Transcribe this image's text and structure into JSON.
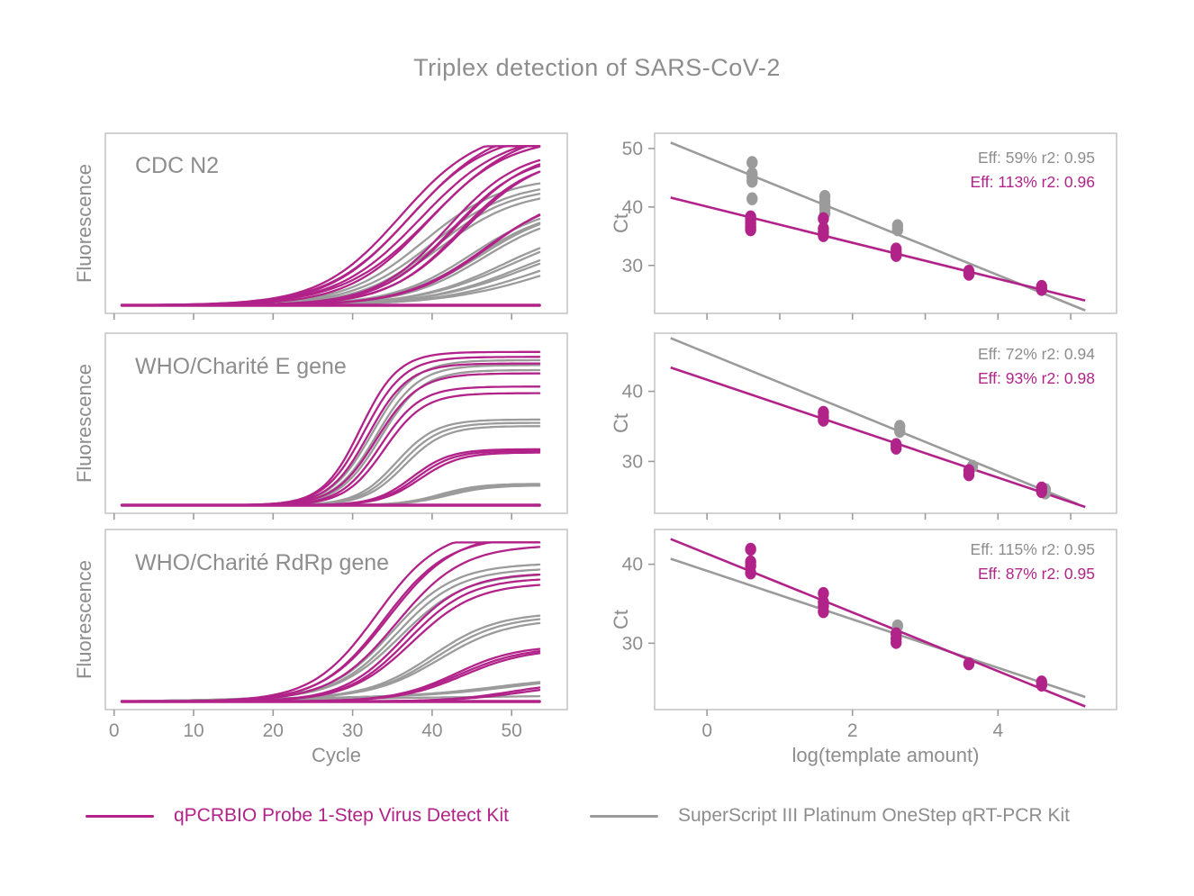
{
  "title": "Triplex detection of SARS-CoV-2",
  "colors": {
    "magenta": "#b12389",
    "gray": "#9b9b9b",
    "text": "#8d8d8d",
    "panel_border": "#c6c6c6",
    "tick": "#9b9b9b"
  },
  "legend": [
    {
      "label": "qPCRBIO Probe 1-Step Virus Detect Kit",
      "color": "magenta"
    },
    {
      "label": "SuperScript III Platinum OneStep qRT-PCR Kit",
      "color": "gray"
    }
  ],
  "chart_data": [
    {
      "type": "line",
      "panel_label": "CDC N2",
      "xlabel": "Cycle",
      "ylabel": "Fluorescence",
      "xlim": [
        -1.1,
        57
      ],
      "xticks": [
        0,
        10,
        20,
        30,
        40,
        50
      ],
      "curves": [
        {
          "series": "gray",
          "mid": 39,
          "plateau": 0.78,
          "rate": 0.2
        },
        {
          "series": "gray",
          "mid": 40,
          "plateau": 0.75,
          "rate": 0.2
        },
        {
          "series": "gray",
          "mid": 40.5,
          "plateau": 0.72,
          "rate": 0.21
        },
        {
          "series": "gray",
          "mid": 41,
          "plateau": 0.7,
          "rate": 0.2
        },
        {
          "series": "gray",
          "mid": 45,
          "plateau": 0.62,
          "rate": 0.2
        },
        {
          "series": "gray",
          "mid": 45.5,
          "plateau": 0.6,
          "rate": 0.2
        },
        {
          "series": "gray",
          "mid": 46,
          "plateau": 0.6,
          "rate": 0.2
        },
        {
          "series": "gray",
          "mid": 46.5,
          "plateau": 0.58,
          "rate": 0.2
        },
        {
          "series": "gray",
          "mid": 49,
          "plateau": 0.5,
          "rate": 0.18
        },
        {
          "series": "gray",
          "mid": 50,
          "plateau": 0.5,
          "rate": 0.17
        },
        {
          "series": "gray",
          "mid": 51,
          "plateau": 0.45,
          "rate": 0.17
        },
        {
          "series": "gray",
          "mid": 52,
          "plateau": 0.45,
          "rate": 0.16
        },
        {
          "series": "gray",
          "mid": 53,
          "plateau": 0.4,
          "rate": 0.16
        },
        {
          "series": "gray",
          "mid": 55,
          "plateau": 0.4,
          "rate": 0.15
        },
        {
          "series": "gray",
          "mid": 30,
          "plateau": 0,
          "rate": 0.2
        },
        {
          "series": "magenta",
          "mid": 36,
          "plateau": 1.08,
          "rate": 0.2
        },
        {
          "series": "magenta",
          "mid": 37,
          "plateau": 1.05,
          "rate": 0.2
        },
        {
          "series": "magenta",
          "mid": 37.5,
          "plateau": 1.1,
          "rate": 0.19
        },
        {
          "series": "magenta",
          "mid": 38.5,
          "plateau": 1.05,
          "rate": 0.19
        },
        {
          "series": "magenta",
          "mid": 39.5,
          "plateau": 1.02,
          "rate": 0.2
        },
        {
          "series": "magenta",
          "mid": 40,
          "plateau": 1.08,
          "rate": 0.18
        },
        {
          "series": "magenta",
          "mid": 42,
          "plateau": 0.95,
          "rate": 0.22
        },
        {
          "series": "magenta",
          "mid": 42.5,
          "plateau": 0.92,
          "rate": 0.22
        },
        {
          "series": "magenta",
          "mid": 43,
          "plateau": 0.95,
          "rate": 0.21
        },
        {
          "series": "magenta",
          "mid": 43.5,
          "plateau": 0.9,
          "rate": 0.22
        },
        {
          "series": "magenta",
          "mid": 44,
          "plateau": 0.92,
          "rate": 0.21
        },
        {
          "series": "magenta",
          "mid": 46.5,
          "plateau": 0.68,
          "rate": 0.2
        },
        {
          "series": "magenta",
          "mid": 47,
          "plateau": 0.7,
          "rate": 0.2
        },
        {
          "series": "magenta",
          "mid": 30,
          "plateau": 0,
          "rate": 0.2,
          "w": 3.5
        },
        {
          "series": "magenta",
          "mid": 32,
          "plateau": 0,
          "rate": 0.2
        }
      ]
    },
    {
      "type": "line",
      "panel_label": "WHO/Charité E gene",
      "xlabel": "Cycle",
      "ylabel": "Fluorescence",
      "xlim": [
        -1.1,
        57
      ],
      "xticks": [
        0,
        10,
        20,
        30,
        40,
        50
      ],
      "curves": [
        {
          "series": "gray",
          "mid": 32.5,
          "plateau": 0.88,
          "rate": 0.38
        },
        {
          "series": "gray",
          "mid": 33,
          "plateau": 0.85,
          "rate": 0.38
        },
        {
          "series": "gray",
          "mid": 33.5,
          "plateau": 0.82,
          "rate": 0.38
        },
        {
          "series": "gray",
          "mid": 35.5,
          "plateau": 0.52,
          "rate": 0.4
        },
        {
          "series": "gray",
          "mid": 36,
          "plateau": 0.5,
          "rate": 0.4
        },
        {
          "series": "gray",
          "mid": 36.5,
          "plateau": 0.48,
          "rate": 0.4
        },
        {
          "series": "gray",
          "mid": 41,
          "plateau": 0.13,
          "rate": 0.4
        },
        {
          "series": "gray",
          "mid": 41.5,
          "plateau": 0.12,
          "rate": 0.4
        },
        {
          "series": "gray",
          "mid": 42,
          "plateau": 0.12,
          "rate": 0.38
        },
        {
          "series": "gray",
          "mid": 30,
          "plateau": 0,
          "rate": 0.2
        },
        {
          "series": "magenta",
          "mid": 31,
          "plateau": 0.93,
          "rate": 0.42
        },
        {
          "series": "magenta",
          "mid": 31.5,
          "plateau": 0.9,
          "rate": 0.4
        },
        {
          "series": "magenta",
          "mid": 32,
          "plateau": 0.86,
          "rate": 0.4
        },
        {
          "series": "magenta",
          "mid": 33,
          "plateau": 0.8,
          "rate": 0.38
        },
        {
          "series": "magenta",
          "mid": 33.5,
          "plateau": 0.72,
          "rate": 0.4
        },
        {
          "series": "magenta",
          "mid": 34,
          "plateau": 0.68,
          "rate": 0.4
        },
        {
          "series": "magenta",
          "mid": 37.5,
          "plateau": 0.34,
          "rate": 0.42
        },
        {
          "series": "magenta",
          "mid": 38,
          "plateau": 0.33,
          "rate": 0.42
        },
        {
          "series": "magenta",
          "mid": 38.5,
          "plateau": 0.32,
          "rate": 0.4
        },
        {
          "series": "magenta",
          "mid": 30,
          "plateau": 0,
          "rate": 0.2,
          "w": 3.5
        },
        {
          "series": "magenta",
          "mid": 33,
          "plateau": 0,
          "rate": 0.2
        },
        {
          "series": "magenta",
          "mid": 36,
          "plateau": 0,
          "rate": 0.2
        }
      ]
    },
    {
      "type": "line",
      "panel_label": "WHO/Charité RdRp gene",
      "xlabel": "Cycle",
      "ylabel": "Fluorescence",
      "xlim": [
        -1.1,
        57
      ],
      "xticks": [
        0,
        10,
        20,
        30,
        40,
        50
      ],
      "curves": [
        {
          "series": "gray",
          "mid": 35,
          "plateau": 0.8,
          "rate": 0.26,
          "drift": 0.035
        },
        {
          "series": "gray",
          "mid": 35.5,
          "plateau": 0.77,
          "rate": 0.26,
          "drift": 0.035
        },
        {
          "series": "gray",
          "mid": 36,
          "plateau": 0.74,
          "rate": 0.25,
          "drift": 0.035
        },
        {
          "series": "gray",
          "mid": 40,
          "plateau": 0.5,
          "rate": 0.25,
          "drift": 0.035
        },
        {
          "series": "gray",
          "mid": 40.5,
          "plateau": 0.48,
          "rate": 0.25,
          "drift": 0.035
        },
        {
          "series": "gray",
          "mid": 41,
          "plateau": 0.46,
          "rate": 0.24,
          "drift": 0.035
        },
        {
          "series": "gray",
          "mid": 48,
          "plateau": 0.1,
          "rate": 0.2,
          "drift": 0.04
        },
        {
          "series": "gray",
          "mid": 50,
          "plateau": 0.1,
          "rate": 0.2,
          "drift": 0.04
        },
        {
          "series": "gray",
          "mid": 30,
          "plateau": 0,
          "rate": 0.2,
          "drift": 0.03
        },
        {
          "series": "magenta",
          "mid": 33,
          "plateau": 1.05,
          "rate": 0.25
        },
        {
          "series": "magenta",
          "mid": 34,
          "plateau": 1.0,
          "rate": 0.25
        },
        {
          "series": "magenta",
          "mid": 34.5,
          "plateau": 1.02,
          "rate": 0.24
        },
        {
          "series": "magenta",
          "mid": 35.5,
          "plateau": 0.95,
          "rate": 0.24
        },
        {
          "series": "magenta",
          "mid": 36.5,
          "plateau": 0.78,
          "rate": 0.26
        },
        {
          "series": "magenta",
          "mid": 37,
          "plateau": 0.75,
          "rate": 0.26
        },
        {
          "series": "magenta",
          "mid": 37.5,
          "plateau": 0.72,
          "rate": 0.25
        },
        {
          "series": "magenta",
          "mid": 43,
          "plateau": 0.34,
          "rate": 0.26
        },
        {
          "series": "magenta",
          "mid": 43.5,
          "plateau": 0.33,
          "rate": 0.25
        },
        {
          "series": "magenta",
          "mid": 44,
          "plateau": 0.32,
          "rate": 0.25
        },
        {
          "series": "magenta",
          "mid": 50,
          "plateau": 0.12,
          "rate": 0.25
        },
        {
          "series": "magenta",
          "mid": 52,
          "plateau": 0.12,
          "rate": 0.22
        },
        {
          "series": "magenta",
          "mid": 30,
          "plateau": 0,
          "rate": 0.2,
          "w": 3.5
        }
      ]
    },
    {
      "type": "scatter",
      "xlabel": "log(template amount)",
      "ylabel": "Ct",
      "xlim": [
        -0.72,
        5.63
      ],
      "xticks": [
        0,
        2,
        4
      ],
      "xtick_marks": [
        0,
        1,
        2,
        3,
        4,
        5
      ],
      "ylim": [
        21.8,
        52.6
      ],
      "yticks": [
        30,
        40,
        50
      ],
      "annotations": [
        {
          "series": "gray",
          "text": "Eff: 59% r2: 0.95"
        },
        {
          "series": "magenta",
          "text": "Eff: 113% r2: 0.96"
        }
      ],
      "series": [
        {
          "name": "SuperScript III Platinum OneStep qRT-PCR Kit",
          "color": "gray",
          "fit_line": {
            "x": [
              -0.5,
              5.2
            ],
            "y": [
              51.0,
              22.3
            ]
          },
          "points": [
            [
              0.62,
              47.6
            ],
            [
              0.62,
              45.7
            ],
            [
              0.62,
              45.1
            ],
            [
              0.62,
              44.4
            ],
            [
              0.62,
              41.4
            ],
            [
              1.62,
              41.8
            ],
            [
              1.62,
              41.0
            ],
            [
              1.62,
              40.3
            ],
            [
              1.62,
              39.6
            ],
            [
              1.62,
              38.9
            ],
            [
              2.62,
              36.8
            ],
            [
              2.62,
              36.1
            ]
          ]
        },
        {
          "name": "qPCRBIO Probe 1-Step Virus Detect Kit",
          "color": "magenta",
          "fit_line": {
            "x": [
              -0.5,
              5.2
            ],
            "y": [
              41.6,
              24.0
            ]
          },
          "points": [
            [
              0.6,
              38.3
            ],
            [
              0.6,
              37.8
            ],
            [
              0.6,
              37.2
            ],
            [
              0.6,
              36.6
            ],
            [
              0.6,
              36.1
            ],
            [
              1.6,
              38.0
            ],
            [
              1.6,
              36.3
            ],
            [
              1.6,
              35.7
            ],
            [
              1.6,
              35.1
            ],
            [
              2.6,
              32.8
            ],
            [
              2.6,
              32.2
            ],
            [
              2.6,
              31.7
            ],
            [
              3.6,
              29.0
            ],
            [
              3.6,
              28.5
            ],
            [
              4.6,
              26.4
            ],
            [
              4.6,
              25.9
            ]
          ]
        }
      ]
    },
    {
      "type": "scatter",
      "xlabel": "log(template amount)",
      "ylabel": "Ct",
      "xlim": [
        -0.72,
        5.63
      ],
      "xticks": [
        0,
        2,
        4
      ],
      "xtick_marks": [
        0,
        1,
        2,
        3,
        4,
        5
      ],
      "ylim": [
        22.6,
        48.3
      ],
      "yticks": [
        30,
        40
      ],
      "annotations": [
        {
          "series": "gray",
          "text": "Eff: 72% r2: 0.94"
        },
        {
          "series": "magenta",
          "text": "Eff: 93% r2: 0.98"
        }
      ],
      "series": [
        {
          "name": "SuperScript III Platinum OneStep qRT-PCR Kit",
          "color": "gray",
          "fit_line": {
            "x": [
              -0.5,
              5.1
            ],
            "y": [
              47.6,
              23.9
            ]
          },
          "points": [
            [
              2.65,
              35.0
            ],
            [
              2.65,
              34.3
            ],
            [
              3.65,
              29.3
            ],
            [
              4.65,
              26.0
            ],
            [
              4.65,
              25.5
            ]
          ]
        },
        {
          "name": "qPCRBIO Probe 1-Step Virus Detect Kit",
          "color": "magenta",
          "fit_line": {
            "x": [
              -0.5,
              5.2
            ],
            "y": [
              43.4,
              23.5
            ]
          },
          "points": [
            [
              1.6,
              37.0
            ],
            [
              1.6,
              36.4
            ],
            [
              1.6,
              35.9
            ],
            [
              2.6,
              32.4
            ],
            [
              2.6,
              31.9
            ],
            [
              3.6,
              28.7
            ],
            [
              3.6,
              28.1
            ],
            [
              4.6,
              26.2
            ],
            [
              4.6,
              25.7
            ]
          ]
        }
      ]
    },
    {
      "type": "scatter",
      "xlabel": "log(template amount)",
      "ylabel": "Ct",
      "xlim": [
        -0.72,
        5.63
      ],
      "xticks": [
        0,
        2,
        4
      ],
      "xtick_marks": [
        0,
        2,
        4
      ],
      "ylim": [
        21.6,
        44.4
      ],
      "yticks": [
        30,
        40
      ],
      "annotations": [
        {
          "series": "gray",
          "text": "Eff: 115% r2: 0.95"
        },
        {
          "series": "magenta",
          "text": "Eff: 87% r2: 0.95"
        }
      ],
      "series": [
        {
          "name": "SuperScript III Platinum OneStep qRT-PCR Kit",
          "color": "gray",
          "fit_line": {
            "x": [
              -0.5,
              5.2
            ],
            "y": [
              40.7,
              23.2
            ]
          },
          "points": [
            [
              2.62,
              32.2
            ]
          ]
        },
        {
          "name": "qPCRBIO Probe 1-Step Virus Detect Kit",
          "color": "magenta",
          "fit_line": {
            "x": [
              -0.5,
              5.2
            ],
            "y": [
              43.2,
              22.0
            ]
          },
          "points": [
            [
              0.6,
              41.9
            ],
            [
              0.6,
              40.3
            ],
            [
              0.6,
              39.8
            ],
            [
              0.6,
              38.9
            ],
            [
              1.6,
              36.3
            ],
            [
              1.6,
              35.2
            ],
            [
              1.6,
              34.7
            ],
            [
              1.6,
              34.0
            ],
            [
              2.6,
              31.2
            ],
            [
              2.6,
              30.6
            ],
            [
              2.6,
              30.1
            ],
            [
              3.6,
              27.4
            ],
            [
              4.6,
              25.1
            ],
            [
              4.6,
              24.7
            ]
          ]
        }
      ]
    }
  ]
}
